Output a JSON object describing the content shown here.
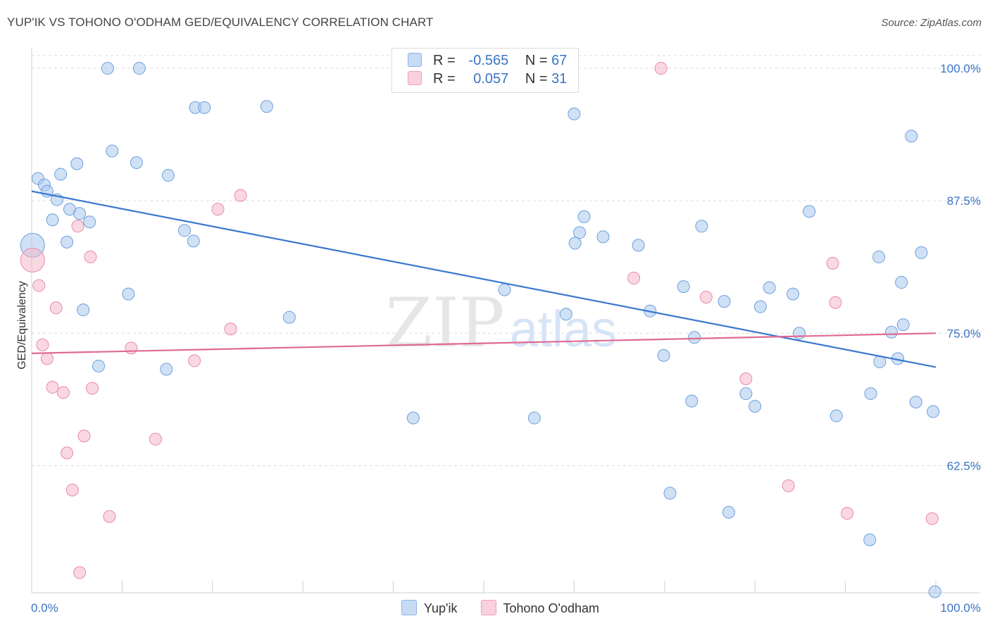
{
  "title": "YUP'IK VS TOHONO O'ODHAM GED/EQUIVALENCY CORRELATION CHART",
  "source": "Source: ZipAtlas.com",
  "watermark": {
    "zip": "ZIP",
    "atlas": "atlas"
  },
  "legend": {
    "r_label": "R =",
    "n_label": "N =",
    "rows": [
      {
        "r": "-0.565",
        "n": "67",
        "color": "#aac8ee"
      },
      {
        "r": "0.057",
        "n": "31",
        "color": "#f5b8cb"
      }
    ]
  },
  "bottom_legend": [
    {
      "name": "Yup'ik",
      "color": "#aac8ee"
    },
    {
      "name": "Tohono O'odham",
      "color": "#f5b8cb"
    }
  ],
  "chart_data": {
    "type": "scatter",
    "title": "YUP'IK VS TOHONO O'ODHAM GED/EQUIVALENCY CORRELATION CHART",
    "xlabel": "",
    "ylabel": "GED/Equivalency",
    "xlim": [
      0,
      100
    ],
    "ylim": [
      50.5,
      101.2
    ],
    "x_tick_labels": [
      "0.0%",
      "100.0%"
    ],
    "y_ticks": [
      62.5,
      75.0,
      87.5,
      100.0
    ],
    "y_tick_labels": [
      "62.5%",
      "75.0%",
      "87.5%",
      "100.0%"
    ],
    "grid": "horizontal dashed",
    "legend_position": "top-center",
    "series": [
      {
        "name": "Yup'ik",
        "color": "#aac8ee",
        "stroke": "#6d9fdc",
        "line_color": "#3a78d0",
        "trend": {
          "x": [
            0,
            100
          ],
          "y": [
            88.4,
            71.8
          ]
        },
        "points": [
          [
            8.4,
            100
          ],
          [
            11.9,
            100
          ],
          [
            0.7,
            89.6
          ],
          [
            1.4,
            89.0
          ],
          [
            1.7,
            88.4
          ],
          [
            3.2,
            90.0
          ],
          [
            5.0,
            91.0
          ],
          [
            8.9,
            92.2
          ],
          [
            11.6,
            91.1
          ],
          [
            15.1,
            89.9
          ],
          [
            18.1,
            96.3
          ],
          [
            19.1,
            96.3
          ],
          [
            26.0,
            96.4
          ],
          [
            2.8,
            87.6
          ],
          [
            4.2,
            86.7
          ],
          [
            5.3,
            86.3
          ],
          [
            6.4,
            85.5
          ],
          [
            2.3,
            85.7
          ],
          [
            16.9,
            84.7
          ],
          [
            17.9,
            83.7
          ],
          [
            3.9,
            83.6
          ],
          [
            0.1,
            83.3
          ],
          [
            60.0,
            95.7
          ],
          [
            61.1,
            86.0
          ],
          [
            60.6,
            84.5
          ],
          [
            60.1,
            83.5
          ],
          [
            63.2,
            84.1
          ],
          [
            67.1,
            83.3
          ],
          [
            74.1,
            85.1
          ],
          [
            86.0,
            86.5
          ],
          [
            97.3,
            93.6
          ],
          [
            93.7,
            82.2
          ],
          [
            98.4,
            82.6
          ],
          [
            10.7,
            78.7
          ],
          [
            28.5,
            76.5
          ],
          [
            5.7,
            77.2
          ],
          [
            59.1,
            76.8
          ],
          [
            52.3,
            79.1
          ],
          [
            68.4,
            77.1
          ],
          [
            72.1,
            79.4
          ],
          [
            76.6,
            78.0
          ],
          [
            81.6,
            79.3
          ],
          [
            80.6,
            77.5
          ],
          [
            84.2,
            78.7
          ],
          [
            96.2,
            79.8
          ],
          [
            7.4,
            71.9
          ],
          [
            14.9,
            71.6
          ],
          [
            69.9,
            72.9
          ],
          [
            73.3,
            74.6
          ],
          [
            84.9,
            75.0
          ],
          [
            93.8,
            72.3
          ],
          [
            95.1,
            75.1
          ],
          [
            96.4,
            75.8
          ],
          [
            95.8,
            72.6
          ],
          [
            42.2,
            67.0
          ],
          [
            55.6,
            67.0
          ],
          [
            73.0,
            68.6
          ],
          [
            79.0,
            69.3
          ],
          [
            80.0,
            68.1
          ],
          [
            89.0,
            67.2
          ],
          [
            92.8,
            69.3
          ],
          [
            97.8,
            68.5
          ],
          [
            99.7,
            67.6
          ],
          [
            70.6,
            59.9
          ],
          [
            77.1,
            58.1
          ],
          [
            92.7,
            55.5
          ],
          [
            99.9,
            50.6
          ]
        ]
      },
      {
        "name": "Tohono O'odham",
        "color": "#f5b8cb",
        "stroke": "#e88aa8",
        "line_color": "#e06a92",
        "trend": {
          "x": [
            0,
            100
          ],
          "y": [
            73.1,
            75.0
          ]
        },
        "points": [
          [
            48.1,
            100
          ],
          [
            69.6,
            100
          ],
          [
            23.1,
            88.0
          ],
          [
            20.6,
            86.7
          ],
          [
            5.1,
            85.1
          ],
          [
            6.5,
            82.2
          ],
          [
            0.1,
            81.9
          ],
          [
            0.8,
            79.5
          ],
          [
            2.7,
            77.4
          ],
          [
            11.0,
            73.6
          ],
          [
            1.2,
            73.9
          ],
          [
            1.7,
            72.6
          ],
          [
            18.0,
            72.4
          ],
          [
            22.0,
            75.4
          ],
          [
            66.6,
            80.2
          ],
          [
            74.6,
            78.4
          ],
          [
            88.6,
            81.6
          ],
          [
            88.9,
            77.9
          ],
          [
            79.0,
            70.7
          ],
          [
            2.3,
            69.9
          ],
          [
            3.5,
            69.4
          ],
          [
            6.7,
            69.8
          ],
          [
            5.8,
            65.3
          ],
          [
            13.7,
            65.0
          ],
          [
            3.9,
            63.7
          ],
          [
            4.5,
            60.2
          ],
          [
            8.6,
            57.7
          ],
          [
            83.7,
            60.6
          ],
          [
            90.2,
            58.0
          ],
          [
            99.6,
            57.5
          ],
          [
            5.3,
            52.4
          ]
        ]
      }
    ]
  }
}
